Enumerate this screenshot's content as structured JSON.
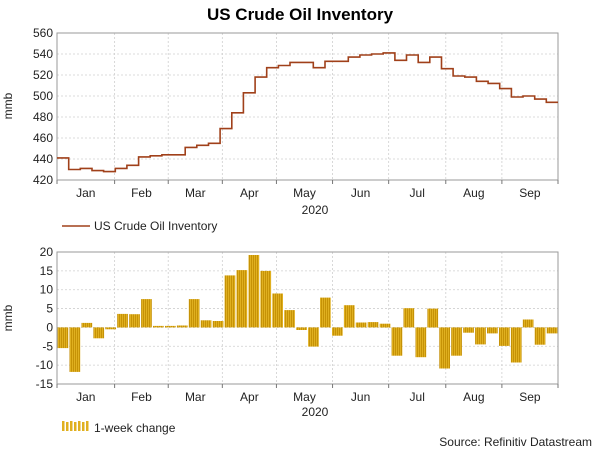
{
  "title": "US Crude Oil Inventory",
  "source": "Source: Refinitiv Datastream",
  "colors": {
    "line": "#a0401a",
    "bar": "#e0b020",
    "bar_stripe": "#c08a00"
  },
  "chart_data": [
    {
      "type": "line",
      "name": "US Crude Oil Inventory",
      "ylabel": "mmb",
      "xlabel": "2020",
      "ylim": [
        420,
        560
      ],
      "yticks": [
        420,
        440,
        460,
        480,
        500,
        520,
        540,
        560
      ],
      "month_labels": [
        "Jan",
        "Feb",
        "Mar",
        "Apr",
        "May",
        "Jun",
        "Jul",
        "Aug",
        "Sep"
      ],
      "legend": "US Crude Oil Inventory",
      "values": [
        441,
        430,
        431,
        429,
        428,
        431,
        434,
        442,
        443,
        444,
        444,
        451,
        453,
        455,
        469,
        484,
        503,
        518,
        527,
        529,
        532,
        532,
        527,
        533,
        533,
        537,
        539,
        540,
        541,
        534,
        539,
        532,
        537,
        526,
        519,
        518,
        514,
        512,
        507,
        499,
        500,
        497,
        494
      ]
    },
    {
      "type": "bar",
      "name": "1-week change",
      "ylabel": "mmb",
      "xlabel": "2020",
      "ylim": [
        -15,
        20
      ],
      "yticks": [
        -15,
        -10,
        -5,
        0,
        5,
        10,
        15,
        20
      ],
      "month_labels": [
        "Jan",
        "Feb",
        "Mar",
        "Apr",
        "May",
        "Jun",
        "Jul",
        "Aug",
        "Sep"
      ],
      "legend": "1-week change",
      "values": [
        -5.5,
        -11.8,
        1.2,
        -2.9,
        -0.5,
        3.6,
        3.5,
        7.5,
        0.4,
        0.4,
        0.5,
        7.5,
        1.9,
        1.7,
        13.8,
        15.2,
        19.2,
        15.0,
        9.0,
        4.6,
        -0.7,
        -5.1,
        7.9,
        -2.2,
        5.9,
        1.3,
        1.4,
        1.0,
        -7.5,
        5.1,
        -7.9,
        5.0,
        -10.9,
        -7.5,
        -1.4,
        -4.5,
        -1.6,
        -4.9,
        -9.3,
        2.1,
        -4.6,
        -1.6
      ]
    }
  ]
}
